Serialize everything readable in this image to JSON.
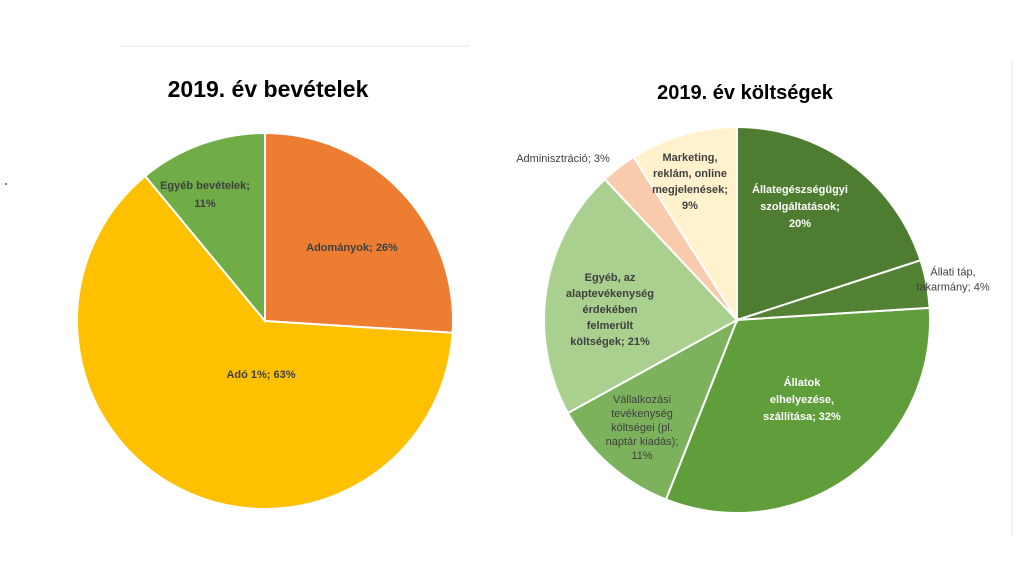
{
  "chart_data": [
    {
      "type": "pie",
      "title": "2019. év bevételek",
      "slices": [
        {
          "name": "Adományok",
          "label_lines": [
            "Adományok; 26%"
          ],
          "value": 26,
          "color": "#ED7D31",
          "label_color": "#404040",
          "bold": true
        },
        {
          "name": "Adó 1%",
          "label_lines": [
            "Adó 1%; 63%"
          ],
          "value": 63,
          "color": "#FFC000",
          "label_color": "#404040",
          "bold": true
        },
        {
          "name": "Egyéb bevételek",
          "label_lines": [
            "Egyéb bevételek;",
            "11%"
          ],
          "value": 11,
          "color": "#70AD47",
          "label_color": "#404040",
          "bold": true
        }
      ]
    },
    {
      "type": "pie",
      "title": "2019. év költségek",
      "slices": [
        {
          "name": "Állategészségügyi szolgáltatások",
          "label_lines": [
            "Állategészségügyi",
            "szolgáltatások;",
            "20%"
          ],
          "value": 20,
          "color": "#4E7D32",
          "label_color": "#FFFFFF",
          "bold": true
        },
        {
          "name": "Állati táp, takarmány",
          "label_lines": [
            "Állati táp,",
            "takarmány; 4%"
          ],
          "value": 4,
          "color": "#548235",
          "label_color": "#404040",
          "bold": false
        },
        {
          "name": "Állatok elhelyezése, szállítása",
          "label_lines": [
            "Állatok",
            "elhelyezése,",
            "szállítása; 32%"
          ],
          "value": 32,
          "color": "#5F9E3A",
          "label_color": "#FFFFFF",
          "bold": true
        },
        {
          "name": "Vállalkozási tevékenység költségei (pl. naptár kiadás)",
          "label_lines": [
            "Vállalkozási",
            "tevékenység",
            "költségei (pl.",
            "naptár kiadás);",
            "11%"
          ],
          "value": 11,
          "color": "#7CB25B",
          "label_color": "#404040",
          "bold": false
        },
        {
          "name": "Egyéb, az alaptevékenység érdekében felmerült költségek",
          "label_lines": [
            "Egyéb, az",
            "alaptevékenység",
            "érdekében",
            "felmerült",
            "költségek; 21%"
          ],
          "value": 21,
          "color": "#A9D08E",
          "label_color": "#404040",
          "bold": true
        },
        {
          "name": "Adminisztráció",
          "label_lines": [
            "Adminisztráció; 3%"
          ],
          "value": 3,
          "color": "#F8CBAD",
          "label_color": "#404040",
          "bold": false
        },
        {
          "name": "Marketing, reklám, online megjelenések",
          "label_lines": [
            "Marketing,",
            "reklám, online",
            "megjelenések;",
            "9%"
          ],
          "value": 9,
          "color": "#FFF2CC",
          "label_color": "#404040",
          "bold": true
        }
      ]
    }
  ]
}
